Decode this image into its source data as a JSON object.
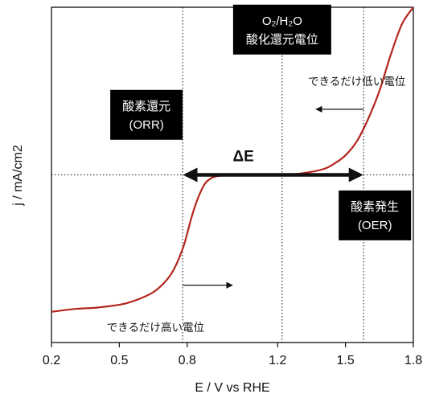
{
  "chart_data": {
    "type": "line",
    "xlabel": "E / V vs RHE",
    "ylabel": "j / mA/cm2",
    "xlim": [
      0.2,
      1.8
    ],
    "ylim": [
      -1.2,
      1.2
    ],
    "xticks": [
      "0.2",
      "0.5",
      "0.8",
      "1.2",
      "1.5",
      "1.8"
    ],
    "xtick_values": [
      0.2,
      0.5,
      0.8,
      1.2,
      1.5,
      1.8
    ],
    "grid": false,
    "series": [
      {
        "color": "#b3261e",
        "x": [
          0.2,
          0.3,
          0.4,
          0.5,
          0.55,
          0.6,
          0.65,
          0.7,
          0.74,
          0.78,
          0.8,
          0.82,
          0.84,
          0.86,
          0.88,
          0.9,
          0.93,
          1.0,
          1.1,
          1.2,
          1.3,
          1.4,
          1.45,
          1.5,
          1.55,
          1.6,
          1.65,
          1.7,
          1.75,
          1.8
        ],
        "y": [
          -0.98,
          -0.96,
          -0.95,
          -0.93,
          -0.91,
          -0.88,
          -0.84,
          -0.77,
          -0.68,
          -0.53,
          -0.42,
          -0.3,
          -0.2,
          -0.12,
          -0.06,
          -0.03,
          -0.01,
          0.0,
          0.0,
          0.0,
          0.01,
          0.04,
          0.08,
          0.14,
          0.24,
          0.4,
          0.6,
          0.86,
          1.08,
          1.2
        ]
      }
    ],
    "reference_lines": {
      "vertical_x": [
        0.78,
        1.22,
        1.58
      ],
      "horizontal_y": [
        0.0
      ]
    },
    "delta_arrow": {
      "x_from": 0.78,
      "x_to": 1.58,
      "y": 0.0,
      "label": "ΔE"
    },
    "annotations": [
      {
        "label_lines": [
          "O₂/H₂O",
          "酸化還元電位"
        ],
        "x": 1.22,
        "y": 1.04,
        "style": "black-box"
      },
      {
        "label_lines": [
          "酸素還元",
          "(ORR)"
        ],
        "x": 0.62,
        "y": 0.43,
        "style": "black-box"
      },
      {
        "label_lines": [
          "酸素発生",
          "(OER)"
        ],
        "x": 1.63,
        "y": -0.29,
        "style": "black-box"
      },
      {
        "label": "できるだけ低い電位",
        "x": 1.55,
        "y": 0.67,
        "style": "text"
      },
      {
        "label": "できるだけ高い電位",
        "x": 0.66,
        "y": -1.09,
        "style": "text"
      }
    ],
    "direction_arrows": [
      {
        "x_from": 1.58,
        "x_to": 1.37,
        "y": 0.47
      },
      {
        "x_from": 0.78,
        "x_to": 1.0,
        "y": -0.79
      }
    ]
  }
}
